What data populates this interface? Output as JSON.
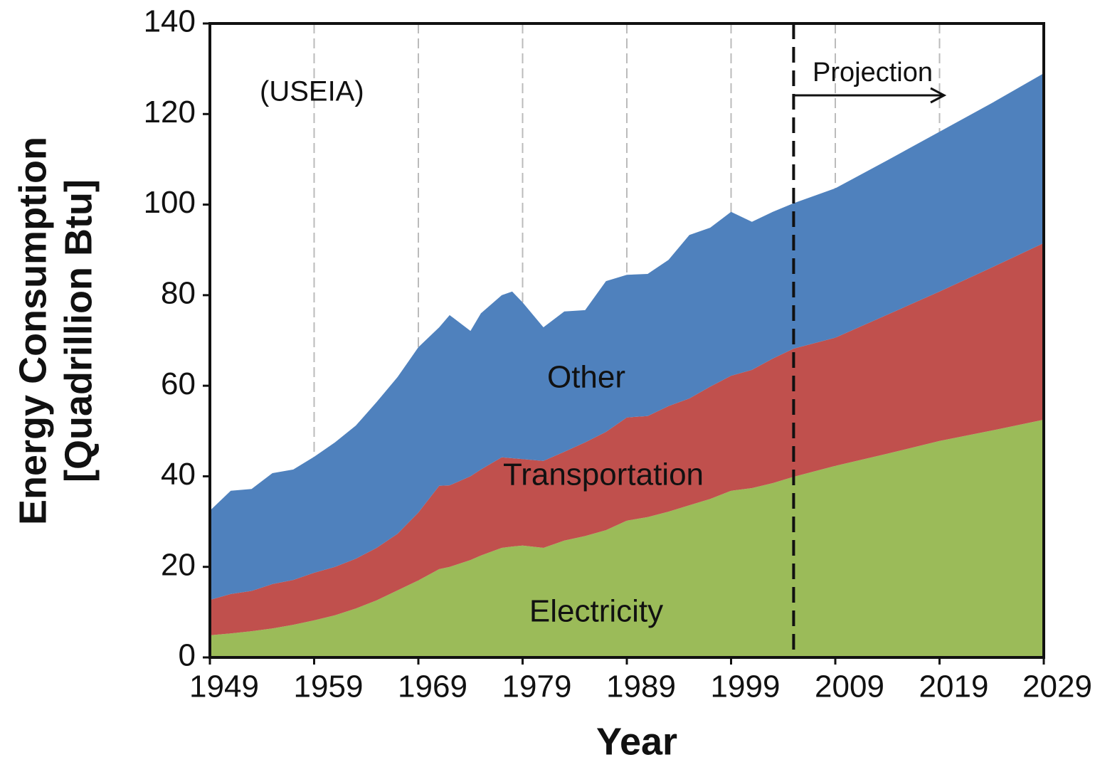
{
  "chart_data": {
    "type": "stacked_area",
    "ylabel": [
      "Energy Consumption",
      "[Quadrillion Btu]"
    ],
    "xlabel": "Year",
    "annotations": [
      "(USEIA)",
      "Projection"
    ],
    "projection_start": 2005,
    "x": [
      1949,
      1951,
      1953,
      1955,
      1957,
      1959,
      1961,
      1963,
      1965,
      1967,
      1969,
      1971,
      1972,
      1974,
      1975,
      1977,
      1978,
      1979,
      1981,
      1983,
      1985,
      1987,
      1989,
      1991,
      1993,
      1995,
      1997,
      1999,
      2001,
      2003,
      2005,
      2009,
      2014,
      2019,
      2024,
      2029
    ],
    "series": [
      {
        "name": "Electricity",
        "color": "#9bbb59",
        "values": [
          4.9,
          5.3,
          5.8,
          6.4,
          7.2,
          8.2,
          9.3,
          10.8,
          12.6,
          14.8,
          17.0,
          19.5,
          20.0,
          21.5,
          22.5,
          24.2,
          24.5,
          24.7,
          24.2,
          25.8,
          26.8,
          28.1,
          30.2,
          31.0,
          32.2,
          33.6,
          35.0,
          36.8,
          37.4,
          38.5,
          39.9,
          42.3,
          45.0,
          47.8,
          50.1,
          52.5
        ]
      },
      {
        "name": "Transportation",
        "color": "#c0504d",
        "values": [
          7.8,
          8.7,
          8.9,
          9.8,
          9.9,
          10.5,
          10.7,
          11.0,
          11.6,
          12.5,
          15.0,
          18.4,
          18.0,
          18.5,
          19.0,
          20.0,
          19.5,
          19.1,
          19.2,
          19.6,
          20.7,
          21.7,
          22.8,
          22.3,
          23.3,
          23.6,
          24.8,
          25.4,
          26.1,
          27.5,
          28.3,
          28.3,
          30.7,
          33.0,
          36.0,
          39.0
        ]
      },
      {
        "name": "Other",
        "color": "#4f81bd",
        "values": [
          19.7,
          22.8,
          22.5,
          24.5,
          24.4,
          25.6,
          27.5,
          29.4,
          32.2,
          34.6,
          36.5,
          35.0,
          37.6,
          32.1,
          34.5,
          35.8,
          36.8,
          34.6,
          29.5,
          31.0,
          29.2,
          33.3,
          31.5,
          31.4,
          32.3,
          36.1,
          35.1,
          36.2,
          32.7,
          32.4,
          32.1,
          33.0,
          34.1,
          35.3,
          36.3,
          37.5
        ]
      }
    ],
    "xlim": [
      1949,
      2029
    ],
    "xticks": [
      1949,
      1959,
      1969,
      1979,
      1989,
      1999,
      2009,
      2019,
      2029
    ],
    "ylim": [
      0,
      140
    ],
    "yticks": [
      0,
      20,
      40,
      60,
      80,
      100,
      120,
      140
    ],
    "grid": "x"
  }
}
